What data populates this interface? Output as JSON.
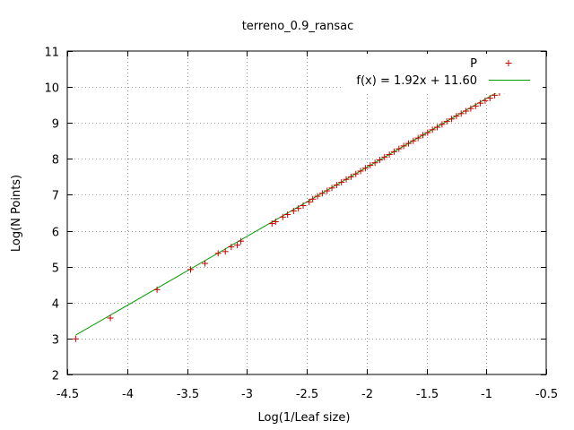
{
  "chart_data": {
    "type": "scatter",
    "title": "terreno_0.9_ransac",
    "xlabel": "Log(1/Leaf size)",
    "ylabel": "Log(N Points)",
    "xlim": [
      -4.5,
      -0.5
    ],
    "ylim": [
      2,
      11
    ],
    "xticks": [
      "-4.5",
      "-4",
      "-3.5",
      "-3",
      "-2.5",
      "-2",
      "-1.5",
      "-1",
      "-0.5"
    ],
    "yticks": [
      "2",
      "3",
      "4",
      "5",
      "6",
      "7",
      "8",
      "9",
      "10",
      "11"
    ],
    "grid": true,
    "legend_position": "top-right",
    "series": [
      {
        "name": "P",
        "kind": "points",
        "marker": "+",
        "color": "#cc0000",
        "x": [
          -4.43,
          -4.14,
          -3.75,
          -3.47,
          -3.35,
          -3.24,
          -3.18,
          -3.13,
          -3.08,
          -3.05,
          -2.79,
          -2.76,
          -2.7,
          -2.66,
          -2.61,
          -2.57,
          -2.53,
          -2.48,
          -2.45,
          -2.41,
          -2.37,
          -2.33,
          -2.29,
          -2.25,
          -2.21,
          -2.17,
          -2.13,
          -2.09,
          -2.05,
          -2.01,
          -1.97,
          -1.93,
          -1.89,
          -1.85,
          -1.81,
          -1.77,
          -1.73,
          -1.69,
          -1.65,
          -1.61,
          -1.57,
          -1.53,
          -1.49,
          -1.45,
          -1.41,
          -1.37,
          -1.33,
          -1.29,
          -1.25,
          -1.21,
          -1.17,
          -1.13,
          -1.09,
          -1.05,
          -1.01,
          -0.97,
          -0.93,
          -0.89,
          -0.85,
          -0.81,
          -0.78
        ],
        "y": [
          2.99,
          3.57,
          4.36,
          4.92,
          5.09,
          5.37,
          5.42,
          5.55,
          5.6,
          5.71,
          6.2,
          6.25,
          6.38,
          6.45,
          6.55,
          6.62,
          6.7,
          6.8,
          6.88,
          6.96,
          7.04,
          7.11,
          7.19,
          7.27,
          7.35,
          7.43,
          7.5,
          7.58,
          7.66,
          7.74,
          7.82,
          7.89,
          7.97,
          8.05,
          8.12,
          8.2,
          8.28,
          8.36,
          8.43,
          8.5,
          8.58,
          8.66,
          8.73,
          8.81,
          8.88,
          8.96,
          9.04,
          9.11,
          9.19,
          9.26,
          9.33,
          9.4,
          9.47,
          9.55,
          9.62,
          9.69,
          9.77,
          9.84,
          9.91,
          9.98,
          10.05
        ]
      },
      {
        "name": "f(x) = 1.92x + 11.60",
        "kind": "line",
        "color": "#00a000",
        "slope": 1.92,
        "intercept": 11.6,
        "x_range": [
          -4.43,
          -0.78
        ]
      }
    ]
  }
}
